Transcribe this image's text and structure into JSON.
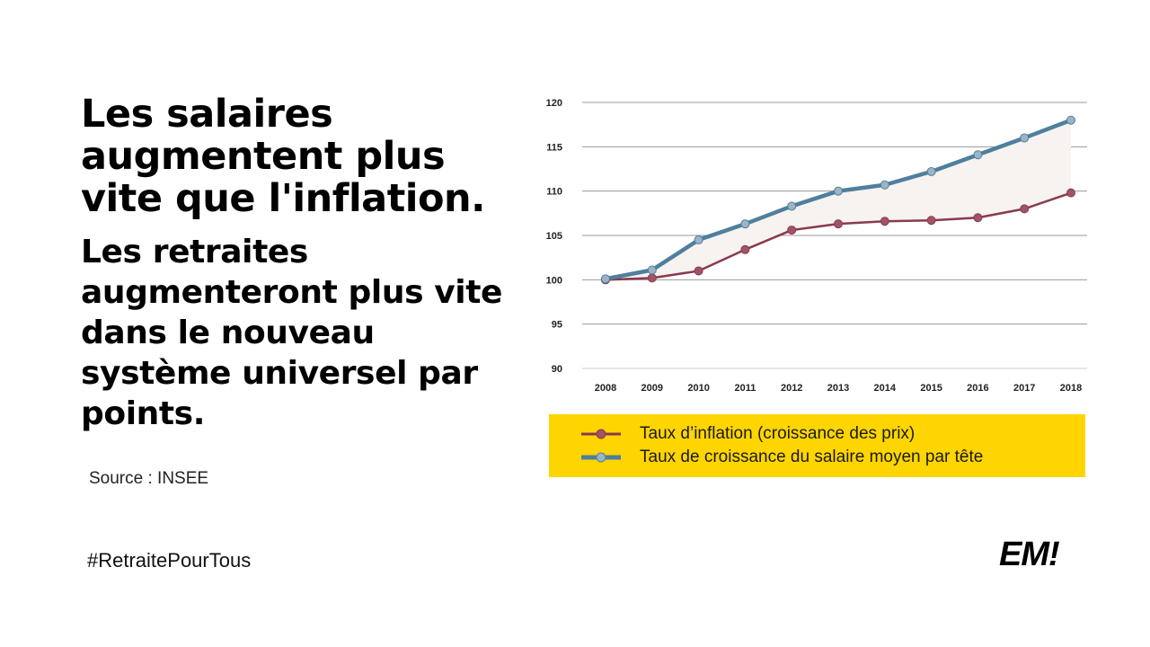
{
  "headline": "Les salaires augmentent plus vite que l'inflation.",
  "subheadline": "Les retraites augmenteront plus vite dans le nouveau système universel par points.",
  "source": "Source : INSEE",
  "hashtag": "#RetraitePourTous",
  "logo": "EM!",
  "colors": {
    "inflation": "#8a3a4e",
    "salary": "#4f7f9d",
    "legend_bg": "#ffd500",
    "gap_fill": "#f6f3f0"
  },
  "chart_data": {
    "type": "line",
    "x": [
      "2008",
      "2009",
      "2010",
      "2011",
      "2012",
      "2013",
      "2014",
      "2015",
      "2016",
      "2017",
      "2018"
    ],
    "ylim": [
      90,
      120
    ],
    "yticks": [
      90,
      95,
      100,
      105,
      110,
      115,
      120
    ],
    "grid": true,
    "legend_position": "bottom",
    "series": [
      {
        "name": "Taux d’inflation (croissance des prix)",
        "color": "#8a3a4e",
        "values": [
          100.0,
          100.2,
          101.0,
          103.4,
          105.6,
          106.3,
          106.6,
          106.7,
          107.0,
          108.0,
          109.8
        ]
      },
      {
        "name": "Taux de croissance du salaire moyen par tête",
        "color": "#4f7f9d",
        "values": [
          100.1,
          101.1,
          104.5,
          106.3,
          108.3,
          110.0,
          110.7,
          112.2,
          114.1,
          116.0,
          118.0
        ]
      }
    ]
  }
}
